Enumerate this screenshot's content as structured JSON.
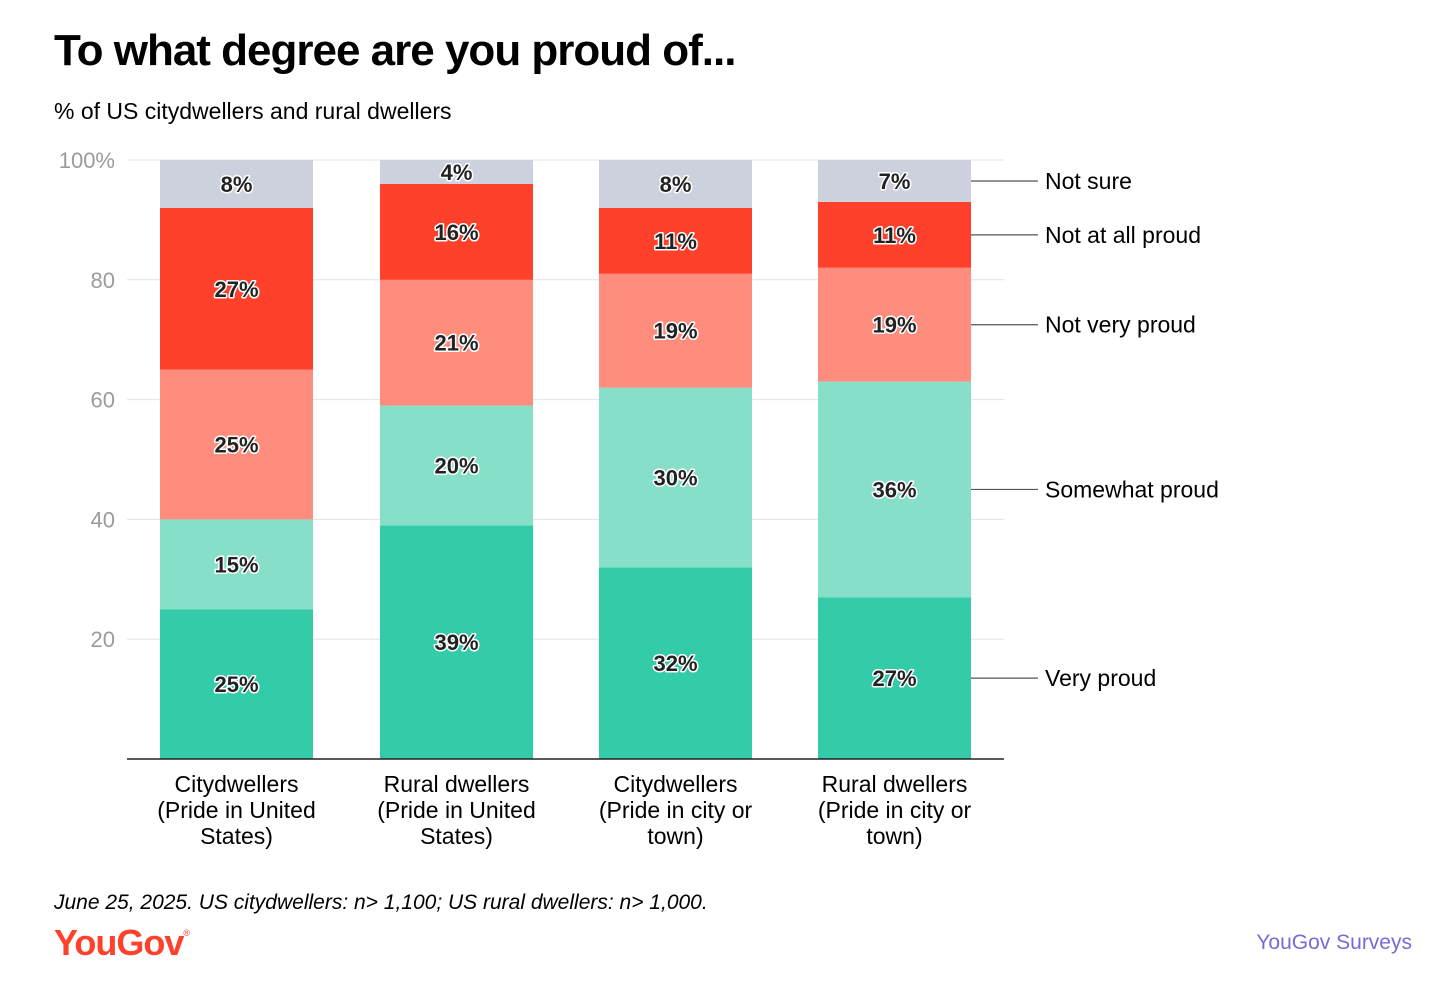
{
  "header": {
    "title": "To what degree are you proud of...",
    "subtitle": "% of US citydwellers and rural dwellers"
  },
  "footer": {
    "footnote": "June 25, 2025. US citydwellers: n> 1,100; US rural dwellers: n> 1,000.",
    "logo": "YouGov",
    "logo_mark": "®",
    "source": "YouGov Surveys"
  },
  "chart_data": {
    "type": "bar",
    "stacked": true,
    "categories": [
      [
        "Citydwellers",
        "(Pride in United",
        "States)"
      ],
      [
        "Rural dwellers",
        "(Pride in United",
        "States)"
      ],
      [
        "Citydwellers",
        "(Pride in city or",
        "town)"
      ],
      [
        "Rural dwellers",
        "(Pride in city or",
        "town)"
      ]
    ],
    "series": [
      {
        "name": "Very proud",
        "color": "#33cba8",
        "values": [
          25,
          39,
          32,
          27
        ]
      },
      {
        "name": "Somewhat proud",
        "color": "#87dfca",
        "values": [
          15,
          20,
          30,
          36
        ]
      },
      {
        "name": "Not very proud",
        "color": "#ff8d7e",
        "values": [
          25,
          21,
          19,
          19
        ]
      },
      {
        "name": "Not at all proud",
        "color": "#ff412c",
        "values": [
          27,
          16,
          11,
          11
        ]
      },
      {
        "name": "Not sure",
        "color": "#cdd1dd",
        "values": [
          8,
          4,
          8,
          7
        ]
      }
    ],
    "ylim": [
      0,
      100
    ],
    "yticks": [
      {
        "value": 20,
        "label": "20"
      },
      {
        "value": 40,
        "label": "40"
      },
      {
        "value": 60,
        "label": "60"
      },
      {
        "value": 80,
        "label": "80"
      },
      {
        "value": 100,
        "label": "100%"
      }
    ],
    "value_suffix": "%",
    "grid": true,
    "legend_placement": "right, labels beside last bar"
  }
}
